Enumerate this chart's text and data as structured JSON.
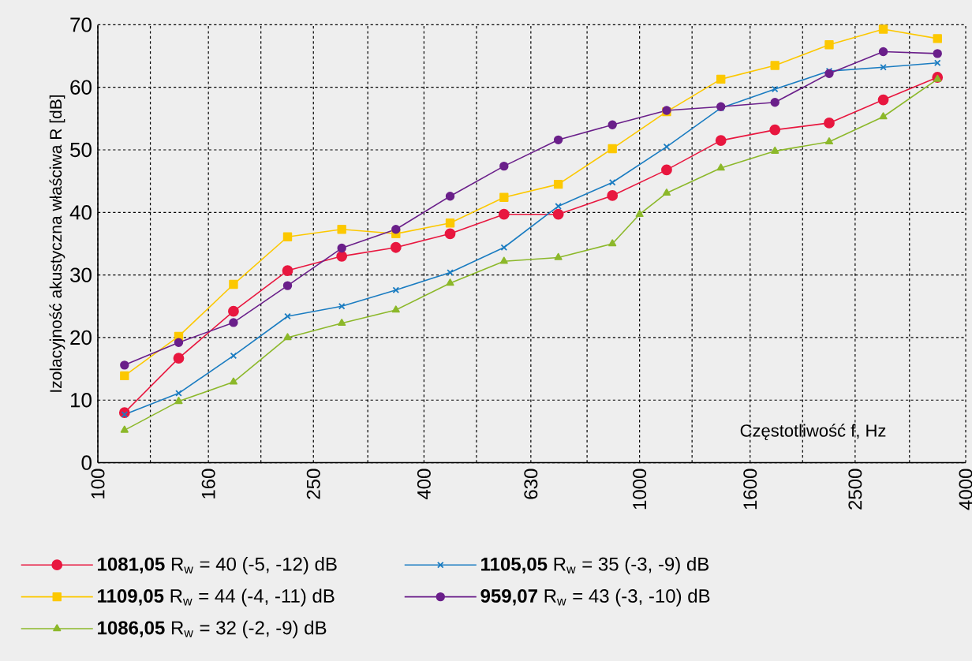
{
  "chart_data": {
    "type": "line",
    "xlabel": "Częstotliwość f, Hz",
    "ylabel": "Izolacyjność akustyczna właściwa R [dB]",
    "log": "x",
    "grid": true,
    "legend": "bottom",
    "line_style": "solid",
    "xlim": [
      100,
      4000
    ],
    "ylim": [
      0,
      70
    ],
    "yticks": [
      0,
      10,
      20,
      30,
      40,
      50,
      60,
      70
    ],
    "xticks": [
      100,
      {
        "value": 125,
        "label": null
      },
      160,
      {
        "value": 200,
        "label": null
      },
      250,
      {
        "value": 315,
        "label": null
      },
      400,
      {
        "value": 500,
        "label": null
      },
      630,
      {
        "value": 800,
        "label": null
      },
      1000,
      {
        "value": 1250,
        "label": null
      },
      1600,
      {
        "value": 2000,
        "label": null
      },
      2500,
      {
        "value": 3150,
        "label": null
      },
      4000
    ],
    "x": [
      112,
      141,
      178,
      224,
      282,
      355,
      447,
      562,
      708,
      891,
      1122,
      1413,
      1778,
      2239,
      2818,
      3548
    ],
    "series": [
      {
        "name": "**1081,05** R$_{w}$ = 40 (-5, -12) dB",
        "color": "#e8173f",
        "marker": "circle",
        "values": [
          8.0,
          16.7,
          24.2,
          30.7,
          33.0,
          34.4,
          36.6,
          39.7,
          39.7,
          42.7,
          46.8,
          51.5,
          53.2,
          54.3,
          58.0,
          61.6
        ]
      },
      {
        "name": "**1109,05** R$_{w}$ = 44 (-4, -11) dB",
        "color": "#fcc800",
        "marker": "square",
        "values": [
          13.9,
          20.2,
          28.5,
          36.1,
          37.3,
          36.6,
          38.3,
          42.4,
          44.5,
          50.2,
          56.1,
          61.3,
          63.5,
          66.8,
          69.3,
          67.8
        ]
      },
      {
        "name": "**1086,05** R$_{w}$ = 32 (-2, -9) dB",
        "color": "#8cb82a",
        "marker": "triangle",
        "x": [
          112,
          141,
          178,
          224,
          282,
          355,
          447,
          562,
          708,
          891,
          1000,
          1122,
          1413,
          1778,
          2239,
          2818,
          3548
        ],
        "values": [
          5.2,
          9.8,
          12.9,
          20.0,
          22.3,
          24.4,
          28.7,
          32.2,
          32.8,
          35.0,
          39.7,
          43.1,
          47.1,
          49.8,
          51.3,
          55.3,
          61.3
        ]
      },
      {
        "name": "**1105,05** R$_{w}$ = 35 (-3, -9) dB",
        "color": "#1a7cc1",
        "marker": "cross",
        "values": [
          7.7,
          11.1,
          17.1,
          23.4,
          25.0,
          27.6,
          30.4,
          34.4,
          41.0,
          44.8,
          50.5,
          56.7,
          59.7,
          62.6,
          63.2,
          63.9
        ]
      },
      {
        "name": "**959,07** R$_{w}$ = 43 (-3, -10) dB",
        "color": "#6a1f8a",
        "marker": "circle",
        "values": [
          15.6,
          19.2,
          22.4,
          28.3,
          34.3,
          37.3,
          42.6,
          47.4,
          51.6,
          54.0,
          56.3,
          56.9,
          57.6,
          62.2,
          65.7,
          65.4
        ]
      }
    ]
  }
}
